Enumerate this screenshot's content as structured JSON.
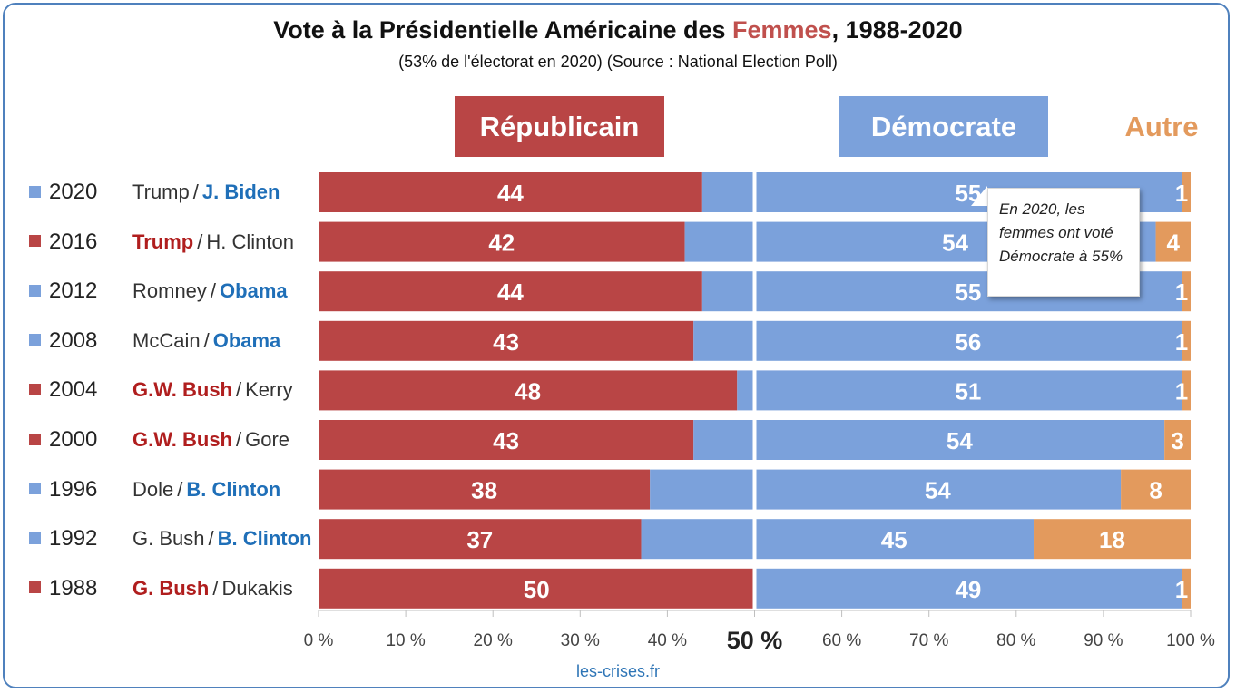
{
  "title": {
    "prefix": "Vote à la Présidentielle Américaine des ",
    "highlight": "Femmes",
    "suffix": ", 1988-2020"
  },
  "subtitle": "(53% de l'électorat en 2020) (Source : National Election Poll)",
  "headers": {
    "rep": "Républicain",
    "dem": "Démocrate",
    "oth": "Autre"
  },
  "callout": "En 2020, les femmes ont voté Démocrate à 55%",
  "source": "les-crises.fr",
  "colors": {
    "rep": "#b94545",
    "dem": "#7ba1db",
    "oth": "#e39a5d",
    "rep_text": "#b01e1e",
    "dem_text": "#1f6fb8"
  },
  "chart_data": {
    "type": "bar",
    "orientation": "horizontal-stacked",
    "x_ticks": [
      "0 %",
      "10 %",
      "20 %",
      "30 %",
      "40 %",
      "50 %",
      "60 %",
      "70 %",
      "80 %",
      "90 %",
      "100 %"
    ],
    "xlim": [
      0,
      100
    ],
    "series": [
      {
        "name": "Républicain",
        "key": "rep"
      },
      {
        "name": "Démocrate",
        "key": "dem"
      },
      {
        "name": "Autre",
        "key": "oth"
      }
    ],
    "rows": [
      {
        "year": "2020",
        "rep_name": "Trump",
        "dem_name": "J. Biden",
        "winner": "dem",
        "rep": 44,
        "dem": 55,
        "oth": 1
      },
      {
        "year": "2016",
        "rep_name": "Trump",
        "dem_name": "H. Clinton",
        "winner": "rep",
        "rep": 42,
        "dem": 54,
        "oth": 4
      },
      {
        "year": "2012",
        "rep_name": "Romney",
        "dem_name": "Obama",
        "winner": "dem",
        "rep": 44,
        "dem": 55,
        "oth": 1
      },
      {
        "year": "2008",
        "rep_name": "McCain",
        "dem_name": "Obama",
        "winner": "dem",
        "rep": 43,
        "dem": 56,
        "oth": 1
      },
      {
        "year": "2004",
        "rep_name": "G.W. Bush",
        "dem_name": "Kerry",
        "winner": "rep",
        "rep": 48,
        "dem": 51,
        "oth": 1
      },
      {
        "year": "2000",
        "rep_name": "G.W. Bush",
        "dem_name": "Gore",
        "winner": "rep",
        "rep": 43,
        "dem": 54,
        "oth": 3
      },
      {
        "year": "1996",
        "rep_name": "Dole",
        "dem_name": "B. Clinton",
        "winner": "dem",
        "rep": 38,
        "dem": 54,
        "oth": 8
      },
      {
        "year": "1992",
        "rep_name": "G. Bush",
        "dem_name": "B. Clinton",
        "winner": "dem",
        "rep": 37,
        "dem": 45,
        "oth": 18
      },
      {
        "year": "1988",
        "rep_name": "G. Bush",
        "dem_name": "Dukakis",
        "winner": "rep",
        "rep": 50,
        "dem": 49,
        "oth": 1
      }
    ]
  }
}
